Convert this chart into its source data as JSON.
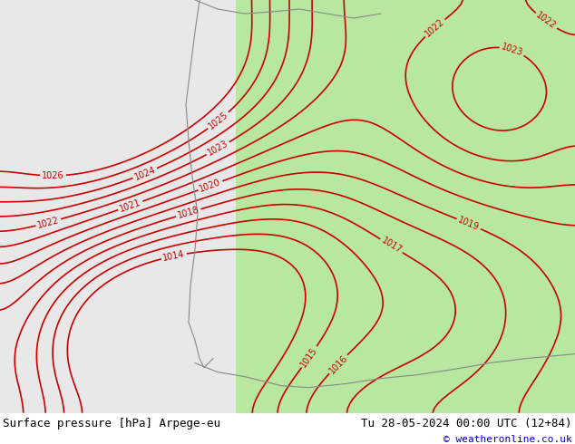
{
  "title_left": "Surface pressure [hPa] Arpege-eu",
  "title_right": "Tu 28-05-2024 00:00 UTC (12+84)",
  "copyright": "© weatheronline.co.uk",
  "bg_color_left": "#f0f0f0",
  "bg_color_right": "#c8f0a0",
  "contour_color": "#cc0000",
  "land_color": "#b8e8a0",
  "sea_color": "#e8e8e8",
  "footer_bg": "#ffffff",
  "footer_text_color": "#000000",
  "copyright_color": "#0000cc",
  "figsize": [
    6.34,
    4.9
  ],
  "dpi": 100
}
